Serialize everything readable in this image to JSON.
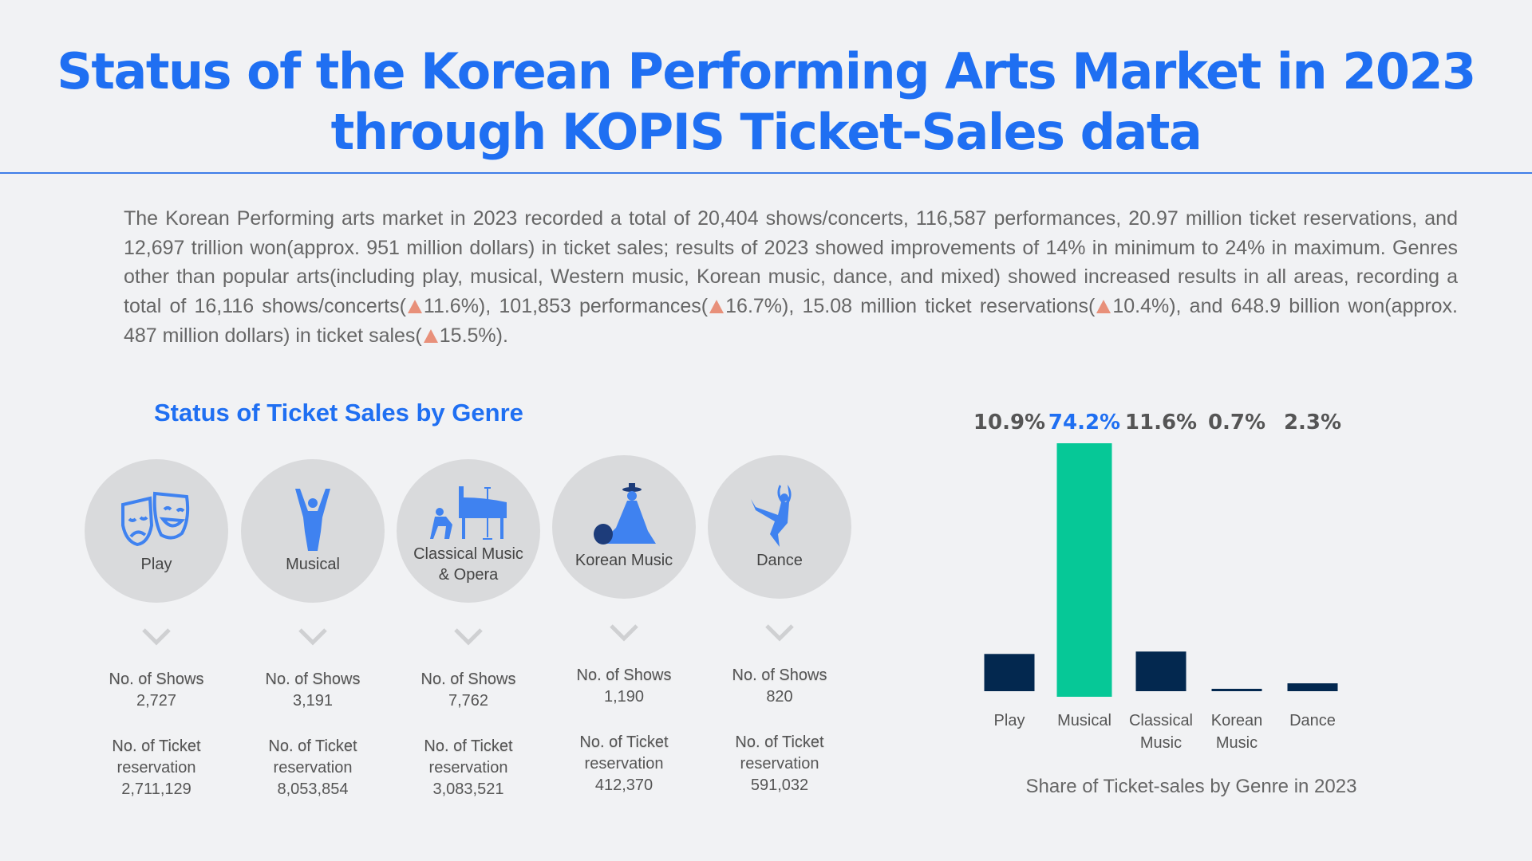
{
  "title": {
    "line1": "Status of the Korean Performing Arts Market in 2023",
    "line2": "through KOPIS Ticket-Sales data"
  },
  "intro": {
    "p1": "The Korean Performing arts market in 2023 recorded a total of 20,404 shows/concerts, 116,587 performances, 20.97 million ticket reservations, and 12,697 trillion won(approx. 951 million dollars) in ticket sales; results of 2023 showed improvements of 14% in minimum to 24% in maximum. Genres other than popular arts(including play, musical, Western music, Korean music, dance, and mixed) showed increased results in all areas, recording a total of 16,116 shows/concerts(",
    "c1": "11.6%), 101,853 performances(",
    "c2": "16.7%), 15.08 million ticket reservations(",
    "c3": "10.4%), and 648.9 billion won(approx. 487 million dollars) in ticket sales(",
    "c4": "15.5%)."
  },
  "section_title": "Status of Ticket Sales by Genre",
  "stat_labels": {
    "shows": "No. of Shows",
    "tickets_1": "No. of Ticket",
    "tickets_2": "reservation"
  },
  "genres": [
    {
      "name": "Play",
      "name2": "",
      "icon": "theater-masks-icon",
      "shows": "2,727",
      "tickets": "2,711,129"
    },
    {
      "name": "Musical",
      "name2": "",
      "icon": "singer-icon",
      "shows": "3,191",
      "tickets": "8,053,854"
    },
    {
      "name": "Classical Music",
      "name2": "& Opera",
      "icon": "piano-icon",
      "shows": "7,762",
      "tickets": "3,083,521"
    },
    {
      "name": "Korean Music",
      "name2": "",
      "icon": "korean-musician-icon",
      "shows": "1,190",
      "tickets": "412,370"
    },
    {
      "name": "Dance",
      "name2": "",
      "icon": "dancer-icon",
      "shows": "820",
      "tickets": "591,032"
    }
  ],
  "colors": {
    "accent": "#1f6ff2",
    "highlight": "#06c897",
    "bar": "#03284f"
  },
  "chart_data": {
    "type": "bar",
    "title": "Share of Ticket-sales by Genre in 2023",
    "categories": [
      [
        "Play"
      ],
      [
        "Musical"
      ],
      [
        "Classical",
        "Music"
      ],
      [
        "Korean",
        "Music"
      ],
      [
        "Dance"
      ]
    ],
    "values": [
      10.9,
      74.2,
      11.6,
      0.7,
      2.3
    ],
    "labels": [
      "10.9%",
      "74.2%",
      "11.6%",
      "0.7%",
      "2.3%"
    ],
    "highlight_index": 1,
    "ylim": [
      0,
      74.2
    ],
    "grid": false,
    "unit": "%"
  }
}
